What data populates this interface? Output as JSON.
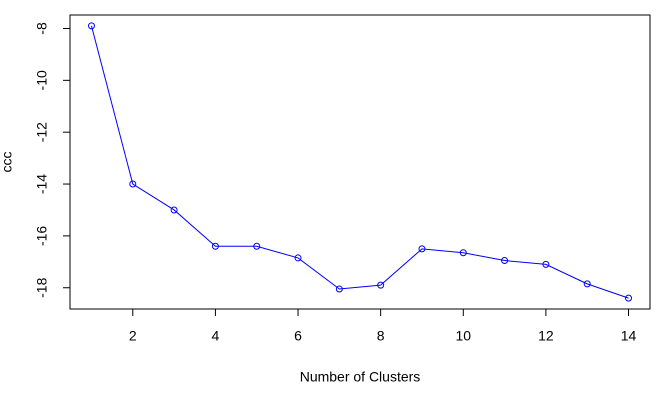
{
  "chart_data": {
    "type": "line",
    "x_label": "Number of Clusters",
    "y_label": "ccc",
    "x": [
      1,
      2,
      3,
      4,
      5,
      6,
      7,
      8,
      9,
      10,
      11,
      12,
      13,
      14
    ],
    "values": [
      -7.9,
      -14.0,
      -15.0,
      -16.4,
      -16.4,
      -16.85,
      -18.05,
      -17.9,
      -16.5,
      -16.65,
      -16.95,
      -17.1,
      -17.85,
      -18.4
    ],
    "color": "#0000ff",
    "xlim": [
      0.48,
      14.52
    ],
    "xticks": [
      2,
      4,
      6,
      8,
      10,
      12,
      14
    ],
    "ylim": [
      -18.82,
      -7.48
    ],
    "yticks": [
      -18,
      -16,
      -14,
      -12,
      -10,
      -8
    ],
    "markers": true,
    "grid": false
  }
}
